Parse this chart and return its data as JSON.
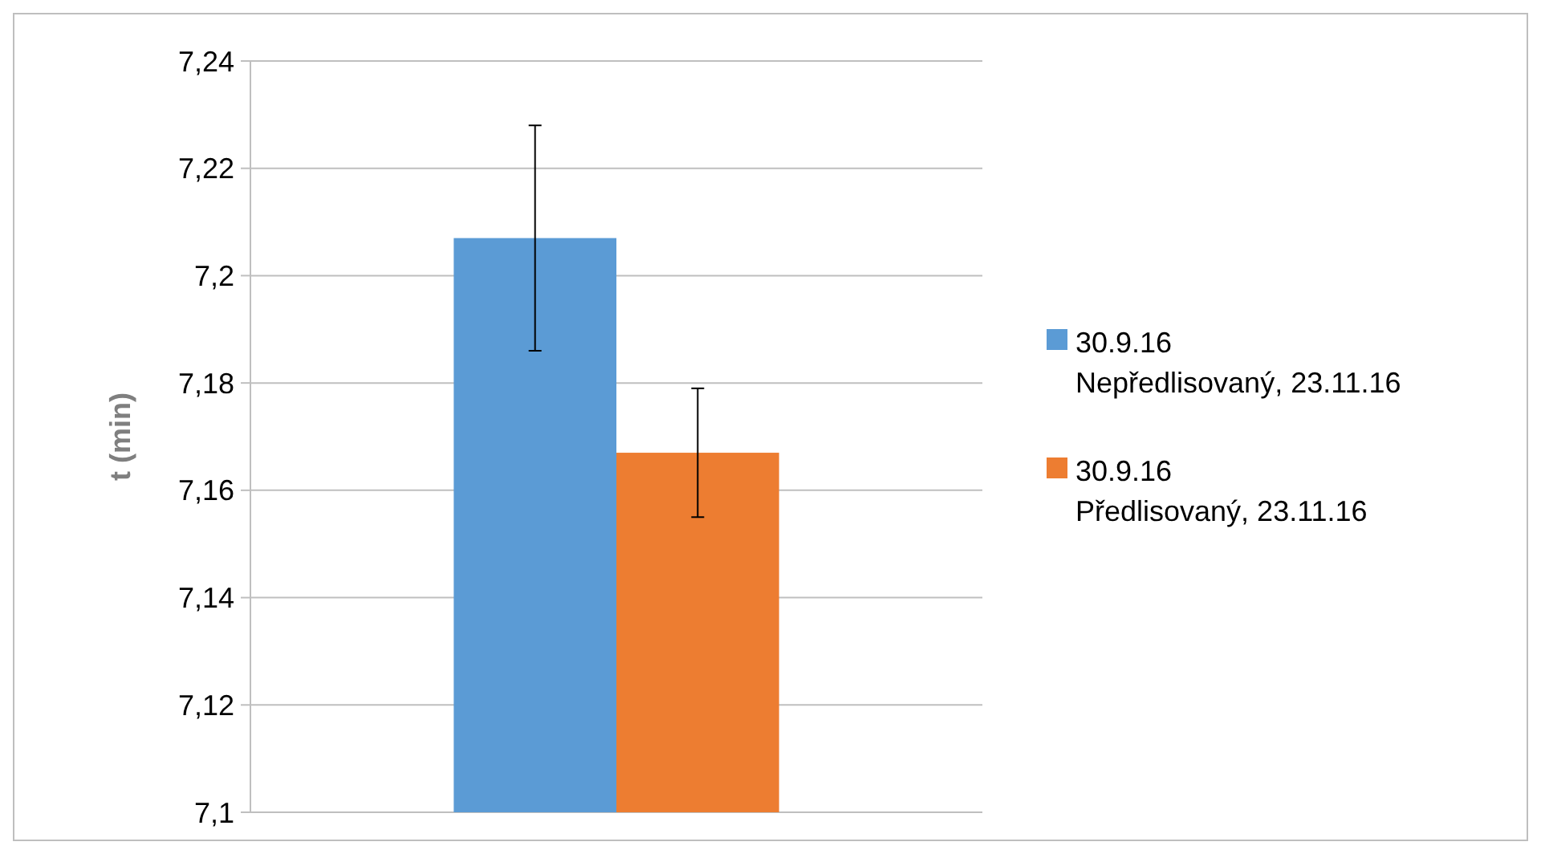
{
  "chart_data": {
    "type": "bar",
    "ylabel": "t (min)",
    "categories": [
      null
    ],
    "series": [
      {
        "name": "30.9.16 Nepředlisovaný, 23.11.16",
        "color": "#5b9bd5",
        "values": [
          7.207
        ],
        "errors": [
          0.021
        ]
      },
      {
        "name": "30.9.16 Předlisovaný, 23.11.16",
        "color": "#ed7d31",
        "values": [
          7.167
        ],
        "errors": [
          0.012
        ]
      }
    ],
    "ylim": [
      7.1,
      7.24
    ],
    "yticks": [
      {
        "value": 7.1,
        "label": "7,1"
      },
      {
        "value": 7.12,
        "label": "7,12"
      },
      {
        "value": 7.14,
        "label": "7,14"
      },
      {
        "value": 7.16,
        "label": "7,16"
      },
      {
        "value": 7.18,
        "label": "7,18"
      },
      {
        "value": 7.2,
        "label": "7,2"
      },
      {
        "value": 7.22,
        "label": "7,22"
      },
      {
        "value": 7.24,
        "label": "7,24"
      }
    ],
    "grid": "y",
    "legend": "right"
  }
}
